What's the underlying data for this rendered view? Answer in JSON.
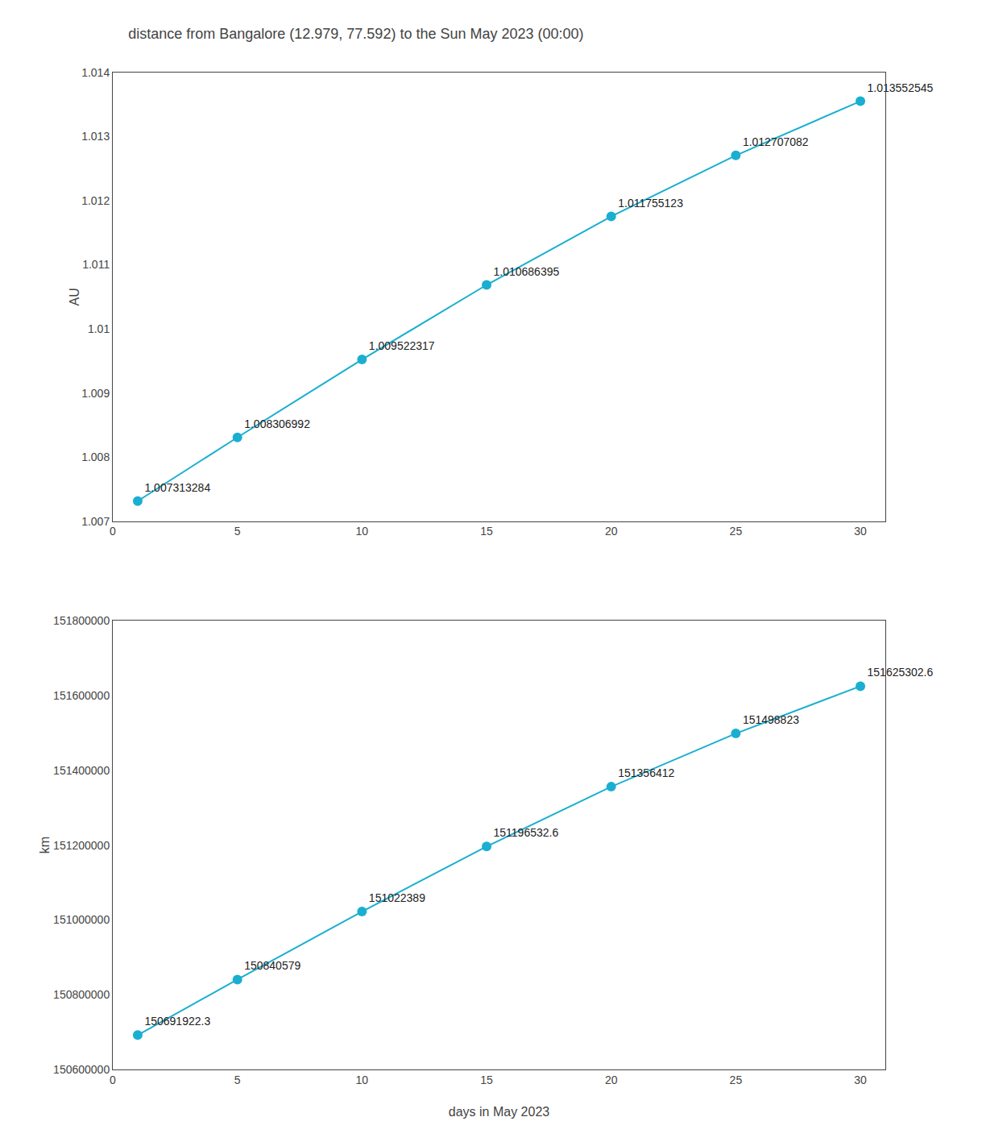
{
  "chart_data": [
    {
      "type": "line",
      "title": "distance from Bangalore (12.979, 77.592) to the Sun May 2023 (00:00)",
      "ylabel": "AU",
      "x": [
        1,
        5,
        10,
        15,
        20,
        25,
        30
      ],
      "values": [
        1.007313284,
        1.008306992,
        1.009522317,
        1.010686395,
        1.011755123,
        1.012707082,
        1.013552545
      ],
      "xlim": [
        0,
        31
      ],
      "xticks": [
        0,
        5,
        10,
        15,
        20,
        25,
        30
      ],
      "ylim": [
        1.007,
        1.014
      ],
      "yticks": [
        1.007,
        1.008,
        1.009,
        1.01,
        1.011,
        1.012,
        1.013,
        1.014
      ],
      "color": "#1aafd0",
      "marker": "circle",
      "data_labels": true,
      "grid": false
    },
    {
      "type": "line",
      "xlabel": "days in May 2023",
      "ylabel": "km",
      "x": [
        1,
        5,
        10,
        15,
        20,
        25,
        30
      ],
      "values": [
        150691922.3,
        150840579.0,
        151022389.0,
        151196532.6,
        151356412.0,
        151498823.0,
        151625302.6
      ],
      "xlim": [
        0,
        31
      ],
      "xticks": [
        0,
        5,
        10,
        15,
        20,
        25,
        30
      ],
      "ylim": [
        150600000,
        151800000
      ],
      "yticks": [
        150600000,
        150800000,
        151000000,
        151200000,
        151400000,
        151600000,
        151800000
      ],
      "color": "#1aafd0",
      "marker": "circle",
      "data_labels": true,
      "grid": false
    }
  ]
}
